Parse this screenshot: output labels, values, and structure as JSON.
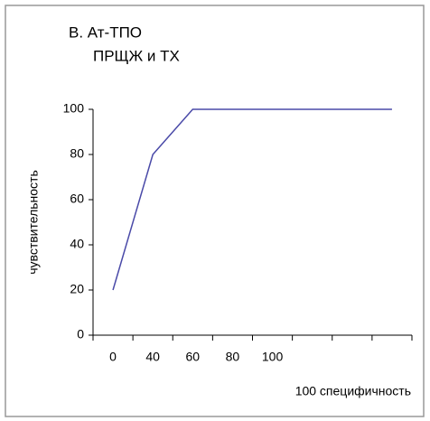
{
  "chart_data": {
    "type": "line",
    "title": "B. Ат-ТПО",
    "subtitle": "ПРЩЖ и ТХ",
    "y_label": "чувствительность",
    "x_label": "100 специфичность",
    "categories": [
      "0",
      "40",
      "60",
      "80",
      "100",
      null,
      null,
      null
    ],
    "series": [
      {
        "name": "Ат-ТПО",
        "color": "#4a4aa8",
        "values": [
          20,
          80,
          100,
          100,
          100,
          100,
          100,
          100
        ]
      }
    ],
    "ylim": [
      0,
      100
    ],
    "yticks": [
      0,
      20,
      40,
      60,
      80,
      100
    ],
    "grid": false
  }
}
